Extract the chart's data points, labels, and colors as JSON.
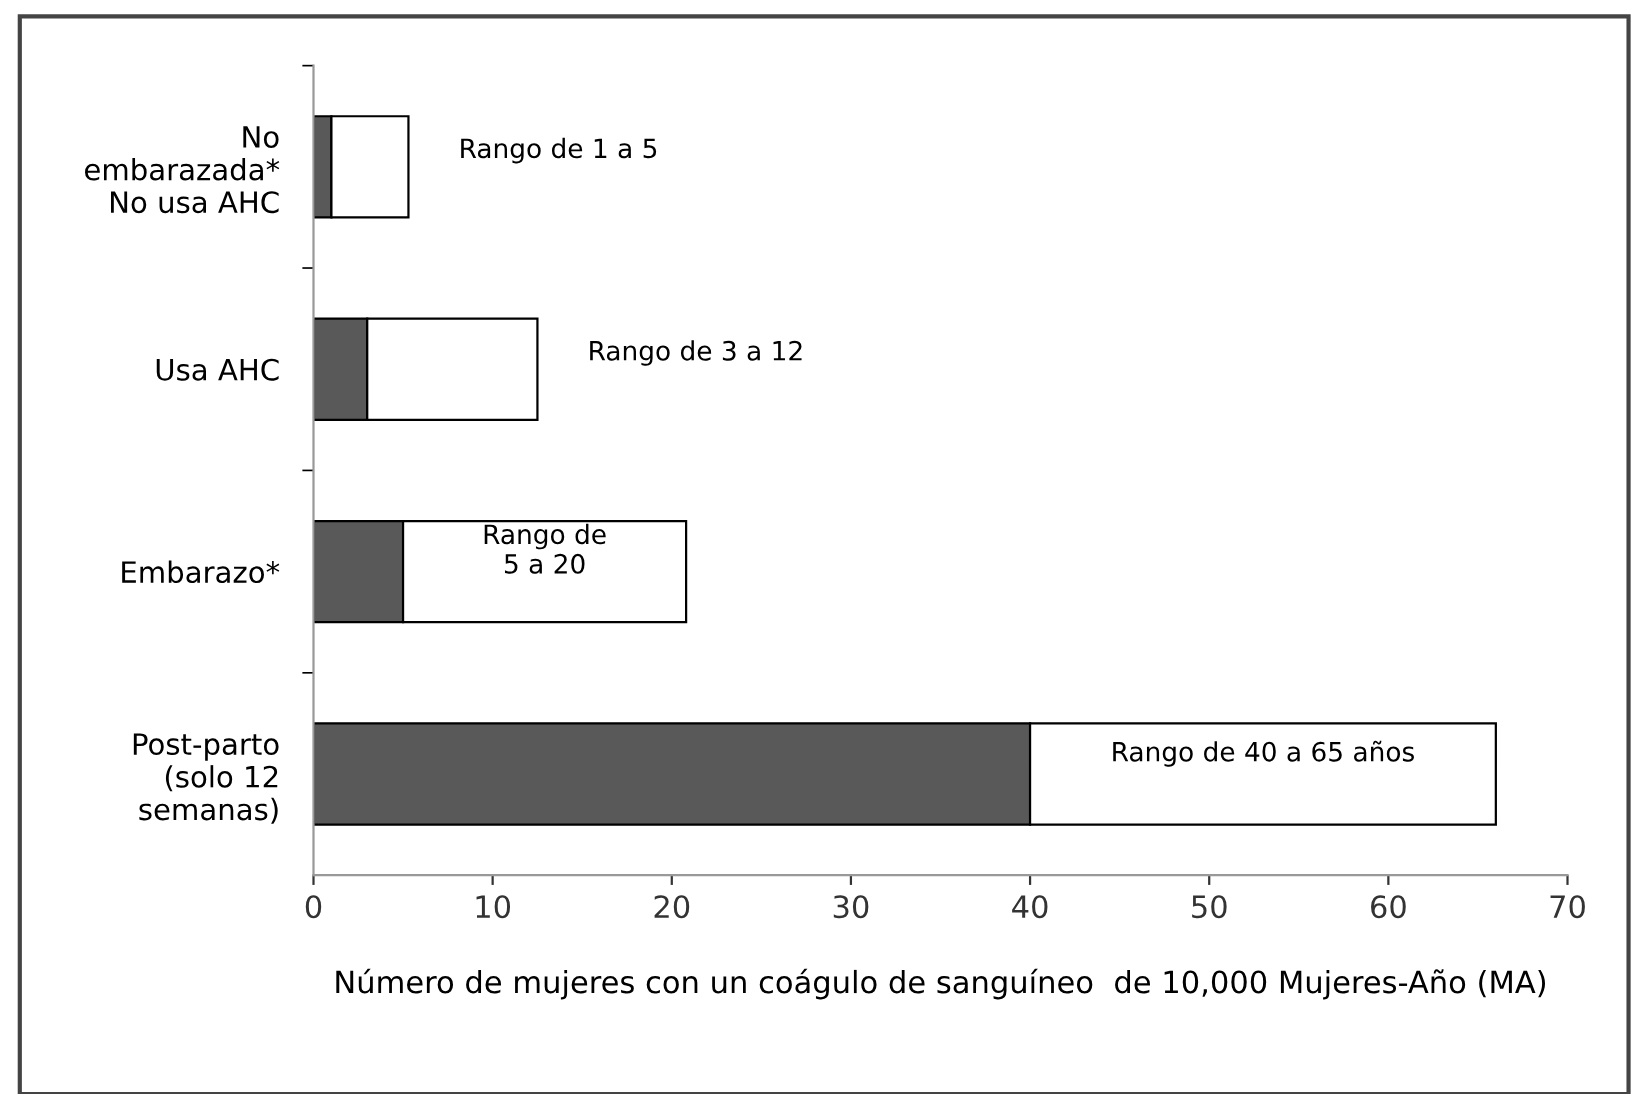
{
  "chart_data": {
    "type": "bar",
    "orientation": "horizontal",
    "stacked": true,
    "categories": [
      "No\nembarazada*\nNo usa AHC",
      "Usa AHC",
      "Embarazo*",
      "Post-parto\n(solo 12\nsemanas)"
    ],
    "series": [
      {
        "color": "#595959",
        "values": [
          1,
          3,
          5,
          40
        ]
      },
      {
        "color": "#ffffff",
        "values": [
          4.3,
          9.5,
          15.8,
          26
        ],
        "value_labels": [
          "Rango de 1 a 5",
          "Rango de 3 a 12",
          "Rango de\n5 a 20",
          "Rango de 40 a 65 años"
        ]
      }
    ],
    "xlabel": "Número de mujeres con un coágulo de sanguíneo  de 10,000 Mujeres-Año (MA)",
    "xlim": [
      0,
      70
    ],
    "xticks": [
      0,
      10,
      20,
      30,
      40,
      50,
      60,
      70
    ],
    "grid": false,
    "legend": false
  }
}
